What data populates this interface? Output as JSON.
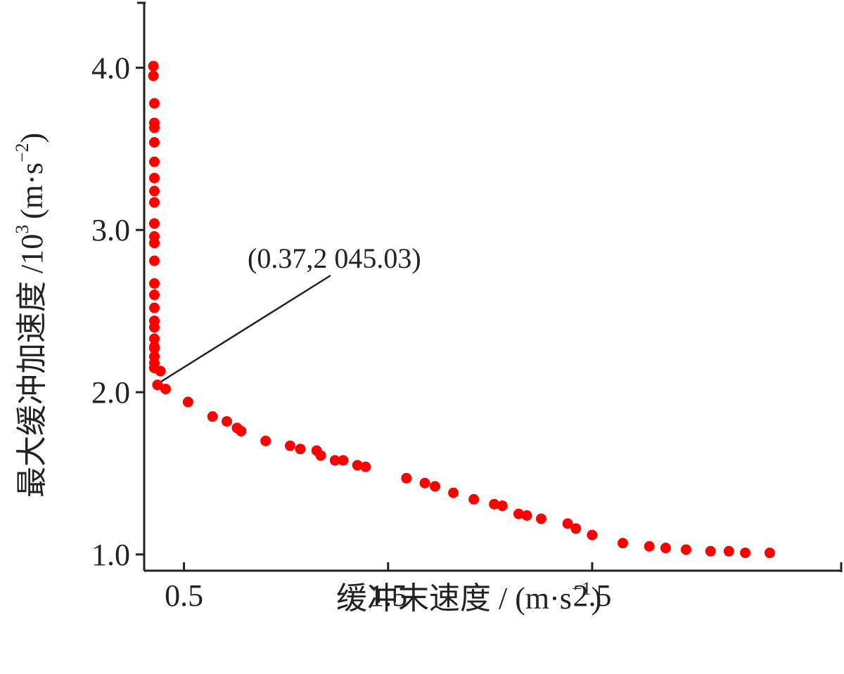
{
  "chart_data": {
    "type": "scatter",
    "title": "",
    "xlabel": "缓冲末速度 / (m·s",
    "xlabel_sup": "−1",
    "xlabel_close": ")",
    "ylabel": "最大缓冲加速度 /10",
    "ylabel_sup3": "3",
    "ylabel_unit": "(m·s",
    "ylabel_sup": "−2",
    "ylabel_close": ")",
    "xlim": [
      0.305,
      3.72
    ],
    "ylim": [
      0.9,
      4.4
    ],
    "xticks": [
      0.5,
      1.5,
      2.5
    ],
    "xtick_labels": [
      "0.5",
      "1.5",
      "2.5"
    ],
    "yticks": [
      1.0,
      2.0,
      3.0,
      4.0
    ],
    "ytick_labels": [
      "1.0",
      "2.0",
      "3.0",
      "4.0"
    ],
    "grid": false,
    "marker_color": "#ff0000",
    "annotation": {
      "text": "(0.37,2 045.03)",
      "point": [
        0.37,
        2.045
      ]
    },
    "x": [
      0.35,
      0.35,
      0.355,
      0.355,
      0.355,
      0.355,
      0.355,
      0.355,
      0.355,
      0.355,
      0.355,
      0.355,
      0.355,
      0.355,
      0.355,
      0.355,
      0.355,
      0.355,
      0.355,
      0.355,
      0.355,
      0.355,
      0.355,
      0.355,
      0.355,
      0.355,
      0.385,
      0.37,
      0.41,
      0.52,
      0.64,
      0.71,
      0.76,
      0.78,
      0.9,
      1.02,
      1.07,
      1.15,
      1.17,
      1.24,
      1.28,
      1.35,
      1.39,
      1.59,
      1.68,
      1.73,
      1.82,
      1.92,
      2.02,
      2.06,
      2.14,
      2.18,
      2.25,
      2.38,
      2.42,
      2.5,
      2.65,
      2.78,
      2.86,
      2.96,
      3.08,
      3.17,
      3.25,
      3.37
    ],
    "y": [
      4.01,
      3.95,
      3.78,
      3.66,
      3.63,
      3.54,
      3.42,
      3.32,
      3.24,
      3.17,
      3.04,
      2.96,
      2.92,
      2.81,
      2.67,
      2.6,
      2.52,
      2.44,
      2.4,
      2.33,
      2.27,
      2.28,
      2.22,
      2.18,
      2.15,
      2.15,
      2.13,
      2.045,
      2.02,
      1.94,
      1.85,
      1.82,
      1.78,
      1.76,
      1.7,
      1.67,
      1.65,
      1.64,
      1.61,
      1.58,
      1.58,
      1.55,
      1.54,
      1.47,
      1.44,
      1.42,
      1.38,
      1.34,
      1.31,
      1.3,
      1.25,
      1.24,
      1.22,
      1.19,
      1.16,
      1.12,
      1.07,
      1.05,
      1.04,
      1.03,
      1.02,
      1.02,
      1.01,
      1.01
    ]
  }
}
